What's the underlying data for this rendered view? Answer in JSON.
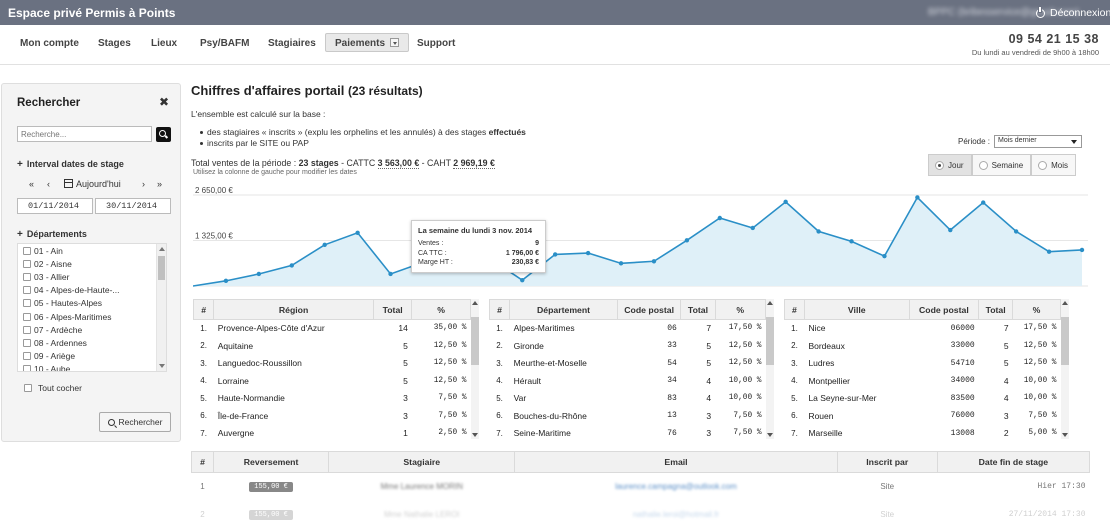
{
  "topbar": {
    "brand": "Espace privé Permis à Points",
    "email": "BPPC (bribesservice@gmail.com)",
    "logout": "Déconnexion"
  },
  "nav": {
    "items": [
      "Mon compte",
      "Stages",
      "Lieux",
      "Psy/BAFM",
      "Stagiaires",
      "Paiements",
      "Support"
    ],
    "active": "Paiements"
  },
  "contact": {
    "phone": "09 54 21 15 38",
    "hours": "Du lundi au vendredi de 9h00 à 18h00"
  },
  "sidebar": {
    "title": "Rechercher",
    "search_placeholder": "Recherche...",
    "interval_label": "Interval dates de stage",
    "date_nav": {
      "first": "«",
      "prev": "‹",
      "today": "Aujourd'hui",
      "next": "›",
      "last": "»"
    },
    "date_from": "01/11/2014",
    "date_to": "30/11/2014",
    "departments_label": "Départements",
    "departments": [
      "01 - Ain",
      "02 - Aisne",
      "03 - Allier",
      "04 - Alpes-de-Haute-...",
      "05 - Hautes-Alpes",
      "06 - Alpes-Maritimes",
      "07 - Ardèche",
      "08 - Ardennes",
      "09 - Ariège",
      "10 - Aube"
    ],
    "check_all": "Tout cocher",
    "search_button": "Rechercher"
  },
  "main": {
    "title": "Chiffres d'affaires portail",
    "results": "(23 résultats)",
    "intro": "L'ensemble est calculé sur la base :",
    "bullet1_a": "des stagiaires « inscrits » (explu les orphelins et les annulés) à des stages ",
    "bullet1_b": "effectués",
    "bullet2": "inscrits par le SITE ou PAP",
    "totals": {
      "prefix": "Total ventes de la période : ",
      "stages": "23 stages",
      "sep1": " - CATTC ",
      "cattc": "3 563,00 €",
      "sep2": " - CAHT ",
      "caht": "2 969,19 €"
    },
    "hint": "Utilisez la colonne de gauche pour modifier les dates",
    "period_label": "Période :",
    "period_value": "Mois dernier",
    "granularity": [
      "Jour",
      "Semaine",
      "Mois"
    ],
    "granularity_selected": "Jour"
  },
  "chart_data": {
    "type": "area",
    "y_ticks": [
      "2 650,00 €",
      "1 325,00 €"
    ],
    "ylim": [
      0,
      2650
    ],
    "values": [
      0,
      150,
      350,
      600,
      1200,
      1550,
      350,
      690,
      860,
      810,
      170,
      920,
      960,
      660,
      720,
      1330,
      1980,
      1690,
      2450,
      1590,
      1300,
      870,
      2580,
      1630,
      2430,
      1590,
      1000,
      1050
    ],
    "color": "#2a8fc7",
    "fill": "#dff0f8",
    "tooltip": {
      "title": "La semaine du lundi 3 nov. 2014",
      "rows": [
        {
          "label": "Ventes :",
          "value": "9"
        },
        {
          "label": "CA TTC :",
          "value": "1 796,00 €"
        },
        {
          "label": "Marge HT :",
          "value": "230,83 €"
        }
      ]
    }
  },
  "regions": {
    "headers": [
      "#",
      "Région",
      "Total",
      "%"
    ],
    "rows": [
      [
        "1.",
        "Provence-Alpes-Côte d'Azur",
        "14",
        "35,00 %"
      ],
      [
        "2.",
        "Aquitaine",
        "5",
        "12,50 %"
      ],
      [
        "3.",
        "Languedoc-Roussillon",
        "5",
        "12,50 %"
      ],
      [
        "4.",
        "Lorraine",
        "5",
        "12,50 %"
      ],
      [
        "5.",
        "Haute-Normandie",
        "3",
        "7,50 %"
      ],
      [
        "6.",
        "Île-de-France",
        "3",
        "7,50 %"
      ],
      [
        "7.",
        "Auvergne",
        "1",
        "2,50 %"
      ]
    ]
  },
  "departements": {
    "headers": [
      "#",
      "Département",
      "Code postal",
      "Total",
      "%"
    ],
    "rows": [
      [
        "1.",
        "Alpes-Maritimes",
        "06",
        "7",
        "17,50 %"
      ],
      [
        "2.",
        "Gironde",
        "33",
        "5",
        "12,50 %"
      ],
      [
        "3.",
        "Meurthe-et-Moselle",
        "54",
        "5",
        "12,50 %"
      ],
      [
        "4.",
        "Hérault",
        "34",
        "4",
        "10,00 %"
      ],
      [
        "5.",
        "Var",
        "83",
        "4",
        "10,00 %"
      ],
      [
        "6.",
        "Bouches-du-Rhône",
        "13",
        "3",
        "7,50 %"
      ],
      [
        "7.",
        "Seine-Maritime",
        "76",
        "3",
        "7,50 %"
      ]
    ]
  },
  "villes": {
    "headers": [
      "#",
      "Ville",
      "Code postal",
      "Total",
      "%"
    ],
    "rows": [
      [
        "1.",
        "Nice",
        "06000",
        "7",
        "17,50 %"
      ],
      [
        "2.",
        "Bordeaux",
        "33000",
        "5",
        "12,50 %"
      ],
      [
        "3.",
        "Ludres",
        "54710",
        "5",
        "12,50 %"
      ],
      [
        "4.",
        "Montpellier",
        "34000",
        "4",
        "10,00 %"
      ],
      [
        "5.",
        "La Seyne-sur-Mer",
        "83500",
        "4",
        "10,00 %"
      ],
      [
        "6.",
        "Rouen",
        "76000",
        "3",
        "7,50 %"
      ],
      [
        "7.",
        "Marseille",
        "13008",
        "2",
        "5,00 %"
      ]
    ]
  },
  "reversements": {
    "headers": [
      "#",
      "Reversement",
      "Stagiaire",
      "Email",
      "Inscrit par",
      "Date fin de stage"
    ],
    "rows": [
      [
        "1",
        "155,00 €",
        "Mme Laurence MORIN",
        "laurence.campagna@outlook.com",
        "Site",
        "Hier 17:30"
      ],
      [
        "2",
        "155,00 €",
        "Mme Nathalie LEROI",
        "nathalie.leroi@hotmail.fr",
        "Site",
        "27/11/2014 17:30"
      ]
    ]
  }
}
